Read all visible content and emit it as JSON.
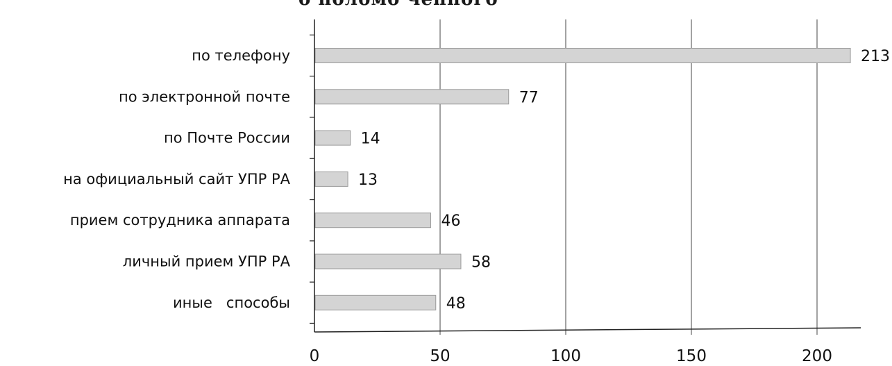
{
  "page": {
    "title_fragment": "о поломо чеппого"
  },
  "colors": {
    "bar_fill": "#d4d4d4",
    "bar_stroke": "#9a9a9a",
    "axis": "#222222",
    "grid": "#444444"
  },
  "chart_data": {
    "type": "bar",
    "orientation": "horizontal",
    "categories": [
      "по телефону",
      "по электронной почте",
      "по Почте России",
      "на официальный сайт УПР РА",
      "прием сотрудника аппарата",
      "личный прием УПР РА",
      "иные   способы"
    ],
    "values": [
      213,
      77,
      14,
      13,
      46,
      58,
      48
    ],
    "value_labels": [
      "213",
      "77",
      "14",
      "13",
      "46",
      "58",
      "48"
    ],
    "xlim": [
      0,
      200
    ],
    "xticks": [
      0,
      50,
      100,
      150,
      200
    ],
    "xtick_labels": [
      "0",
      "50",
      "100",
      "150",
      "200"
    ],
    "grid": "vertical",
    "legend": "none",
    "title": "",
    "xlabel": "",
    "ylabel": ""
  }
}
